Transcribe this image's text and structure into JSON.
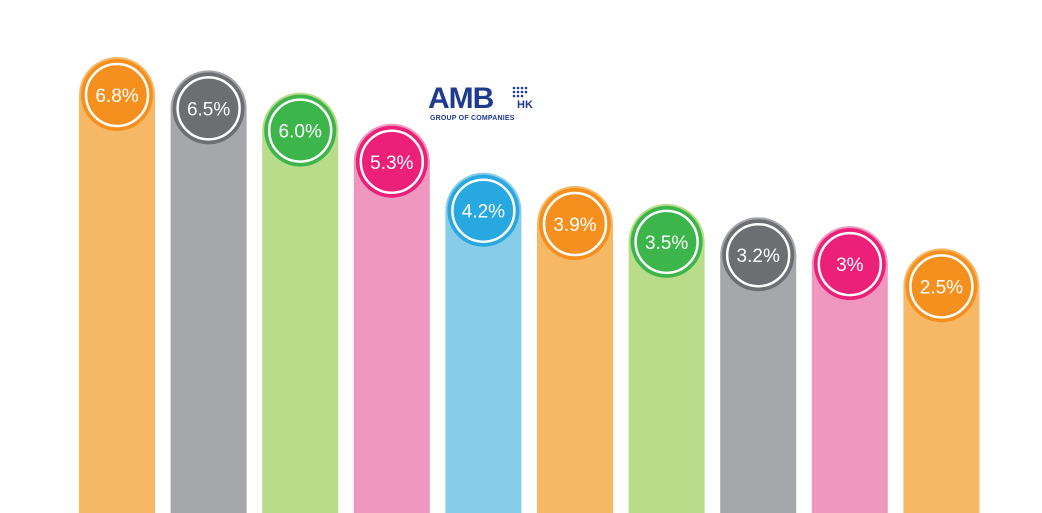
{
  "logo": {
    "main": "AMB",
    "sub": "HK",
    "tagline": "GROUP OF COMPANIES"
  },
  "chart_data": {
    "type": "bar",
    "title": "",
    "xlabel": "",
    "ylabel": "",
    "ylim": [
      0,
      8
    ],
    "grid": false,
    "values": [
      6.8,
      6.5,
      6.0,
      5.3,
      4.2,
      3.9,
      3.5,
      3.2,
      3.0,
      2.5
    ],
    "labels": [
      "6.8%",
      "6.5%",
      "6.0%",
      "5.3%",
      "4.2%",
      "3.9%",
      "3.5%",
      "3.2%",
      "3%",
      "2.5%"
    ],
    "bar_colors": [
      "#f7b866",
      "#a6a7ab",
      "#b9dc8b",
      "#ef97bf",
      "#87cce8",
      "#f7b866",
      "#b9dc8b",
      "#a6a7ab",
      "#ef97bf",
      "#f7b866"
    ],
    "badge_colors": [
      "#f5901f",
      "#6d6e71",
      "#3cb54a",
      "#ec2079",
      "#27a8e0",
      "#f5901f",
      "#3cb54a",
      "#6d6e71",
      "#ec2079",
      "#f5901f"
    ]
  }
}
